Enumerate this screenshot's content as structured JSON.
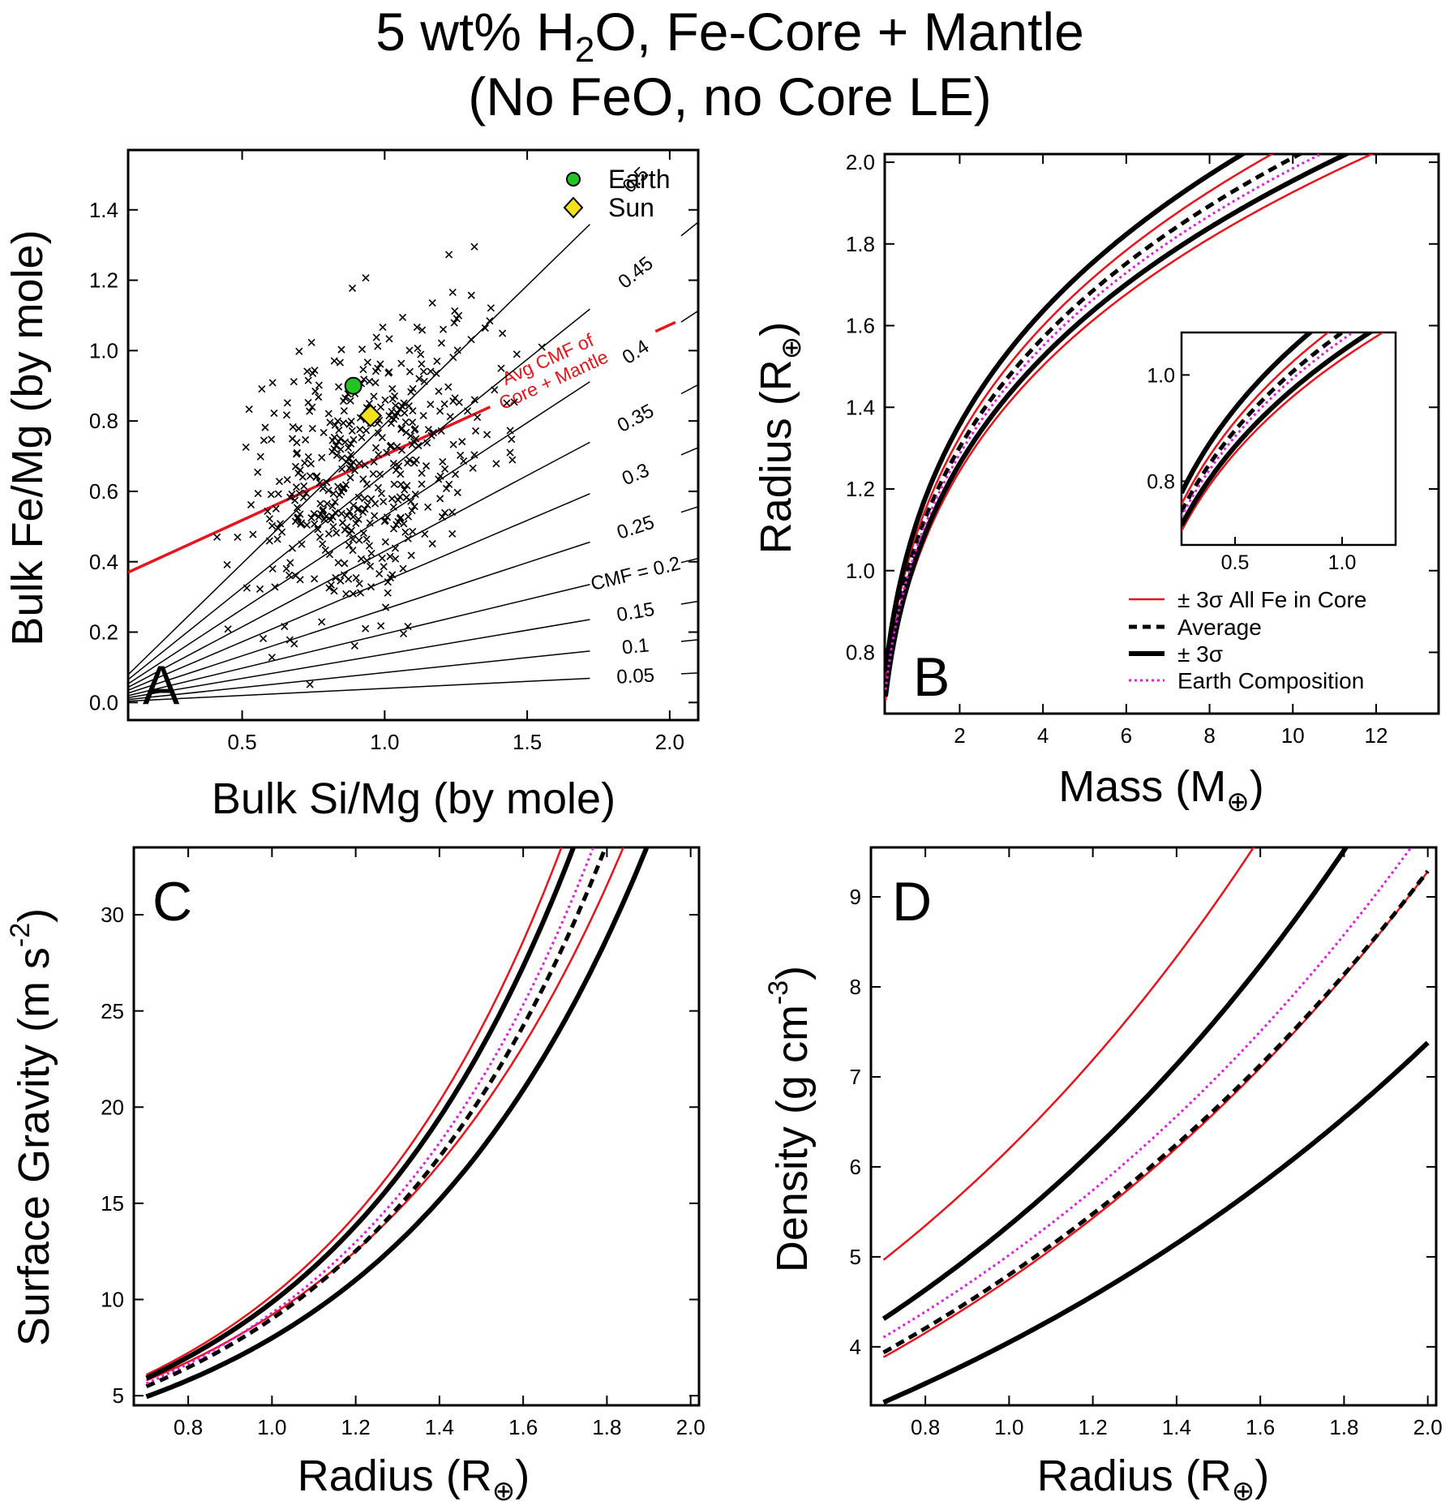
{
  "title": {
    "line1_a": "5 wt% H",
    "line1_sub": "2",
    "line1_b": "O, Fe-Core + Mantle",
    "line2": "(No FeO, no Core LE)"
  },
  "chart_data": [
    {
      "panel": "A",
      "type": "scatter",
      "xlabel": "Bulk Si/Mg (by mole)",
      "ylabel": "Bulk Fe/Mg (by mole)",
      "xlim": [
        0.1,
        2.1
      ],
      "ylim": [
        -0.05,
        1.57
      ],
      "xticks": [
        "0.5",
        "1.0",
        "1.5",
        "2.0"
      ],
      "yticks": [
        "0.0",
        "0.2",
        "0.4",
        "0.6",
        "0.8",
        "1.0",
        "1.2",
        "1.4"
      ],
      "legend": {
        "position": "top-right",
        "entries": [
          {
            "name": "Earth",
            "color": "#22c322",
            "marker": "circle"
          },
          {
            "name": "Sun",
            "color": "#f2e21c",
            "marker": "diamond"
          }
        ]
      },
      "earth": {
        "x": 0.89,
        "y": 0.9
      },
      "sun": {
        "x": 0.95,
        "y": 0.815
      },
      "cmf_lines": [
        {
          "label": "0.05",
          "intercept": 0.04,
          "slope": 0.04
        },
        {
          "label": "0.1",
          "intercept": 0.085,
          "slope": 0.085
        },
        {
          "label": "0.15",
          "intercept": 0.14,
          "slope": 0.137
        },
        {
          "label": "0.2",
          "label_text": "CMF = 0.2",
          "intercept": 0.195,
          "slope": 0.195
        },
        {
          "label": "0.25",
          "intercept": 0.265,
          "slope": 0.265
        },
        {
          "label": "0.3",
          "intercept": 0.345,
          "slope": 0.345
        },
        {
          "label": "0.35",
          "intercept": 0.43,
          "slope": 0.43
        },
        {
          "label": "0.4",
          "intercept": 0.53,
          "slope": 0.53
        },
        {
          "label": "0.45",
          "intercept": 0.65,
          "slope": 0.65
        },
        {
          "label": "0.5",
          "intercept": 0.79,
          "slope": 0.79
        }
      ],
      "avg_line": {
        "label_line1": "Avg CMF of",
        "label_line2": "Core + Mantle",
        "intercept": 0.333,
        "slope": 0.37,
        "color": "#e8141b"
      },
      "points_seed": 7,
      "points_count": 450,
      "panel_label": "A"
    },
    {
      "panel": "B",
      "type": "line",
      "xlabel_main": "Mass (M",
      "xlabel_sub": "⊕",
      "xlabel_end": ")",
      "ylabel_main": "Radius (R",
      "ylabel_sub": "⊕",
      "ylabel_end": ")",
      "xlim": [
        0.2,
        13.5
      ],
      "ylim": [
        0.65,
        2.02
      ],
      "xticks": [
        "2",
        "4",
        "6",
        "8",
        "10",
        "12"
      ],
      "yticks": [
        "0.8",
        "1.0",
        "1.2",
        "1.4",
        "1.6",
        "1.8",
        "2.0"
      ],
      "series": [
        {
          "name": "± 3σ All Fe in Core",
          "k": 1.03,
          "p": 0.272,
          "color": "#e8141b",
          "style": "solid-thin"
        },
        {
          "name": "",
          "k": 1.1,
          "p": 0.27,
          "color": "#e8141b",
          "style": "solid-thin"
        },
        {
          "name": "Average",
          "k": 1.08,
          "p": 0.27,
          "color": "#000000",
          "style": "dashed"
        },
        {
          "name": "± 3σ",
          "k": 1.045,
          "p": 0.272,
          "color": "#000000",
          "style": "solid-thick"
        },
        {
          "name": "",
          "k": 1.128,
          "p": 0.268,
          "color": "#000000",
          "style": "solid-thick"
        },
        {
          "name": "Earth Composition",
          "k": 1.066,
          "p": 0.27,
          "color": "#e01ee0",
          "style": "dotted"
        }
      ],
      "inset": {
        "xlim": [
          0.25,
          1.25
        ],
        "ylim": [
          0.68,
          1.08
        ],
        "xticks": [
          "0.5",
          "1.0"
        ],
        "yticks": [
          "0.8",
          "1.0"
        ]
      },
      "panel_label": "B"
    },
    {
      "panel": "C",
      "type": "line",
      "xlabel_main": "Radius (R",
      "xlabel_sub": "⊕",
      "xlabel_end": ")",
      "ylabel_main": "Surface Gravity (m s",
      "ylabel_sup": "-2",
      "ylabel_end": ")",
      "xlim": [
        0.67,
        2.02
      ],
      "ylim": [
        4.5,
        33.5
      ],
      "xticks": [
        "0.8",
        "1.0",
        "1.2",
        "1.4",
        "1.6",
        "1.8",
        "2.0"
      ],
      "yticks": [
        "5",
        "10",
        "15",
        "20",
        "25",
        "30"
      ],
      "series": [
        {
          "name": "",
          "a": 10.2,
          "b": 1.72,
          "color": "#e8141b",
          "style": "solid-thin"
        },
        {
          "name": "",
          "a": 9.2,
          "b": 1.54,
          "color": "#e8141b",
          "style": "solid-thin"
        },
        {
          "name": "",
          "a": 9.85,
          "b": 1.7,
          "color": "#000000",
          "style": "solid-thick"
        },
        {
          "name": "",
          "a": 8.0,
          "b": 1.6,
          "color": "#000000",
          "style": "solid-thick"
        },
        {
          "name": "",
          "a": 9.0,
          "b": 1.65,
          "color": "#000000",
          "style": "dashed"
        },
        {
          "name": "",
          "a": 9.3,
          "b": 1.67,
          "color": "#e01ee0",
          "style": "dotted"
        }
      ],
      "panel_label": "C"
    },
    {
      "panel": "D",
      "type": "line",
      "xlabel_main": "Radius (R",
      "xlabel_sub": "⊕",
      "xlabel_end": ")",
      "ylabel_main": "Density (g cm",
      "ylabel_sup": "-3",
      "ylabel_end": ")",
      "xlim": [
        0.67,
        2.02
      ],
      "ylim": [
        3.35,
        9.55
      ],
      "xticks": [
        "0.8",
        "1.0",
        "1.2",
        "1.4",
        "1.6",
        "1.8",
        "2.0"
      ],
      "yticks": [
        "4",
        "5",
        "6",
        "7",
        "8",
        "9"
      ],
      "series": [
        {
          "name": "",
          "a": 6.2,
          "b": 0.74,
          "color": "#e8141b",
          "style": "solid-thin"
        },
        {
          "name": "",
          "a": 4.75,
          "b": 0.67,
          "color": "#e8141b",
          "style": "solid-thin"
        },
        {
          "name": "",
          "a": 5.35,
          "b": 0.72,
          "color": "#000000",
          "style": "solid-thick"
        },
        {
          "name": "",
          "a": 4.05,
          "b": 0.6,
          "color": "#000000",
          "style": "solid-thick"
        },
        {
          "name": "",
          "a": 4.8,
          "b": 0.66,
          "color": "#000000",
          "style": "dashed"
        },
        {
          "name": "",
          "a": 5.02,
          "b": 0.67,
          "color": "#e01ee0",
          "style": "dotted"
        }
      ],
      "panel_label": "D"
    }
  ]
}
